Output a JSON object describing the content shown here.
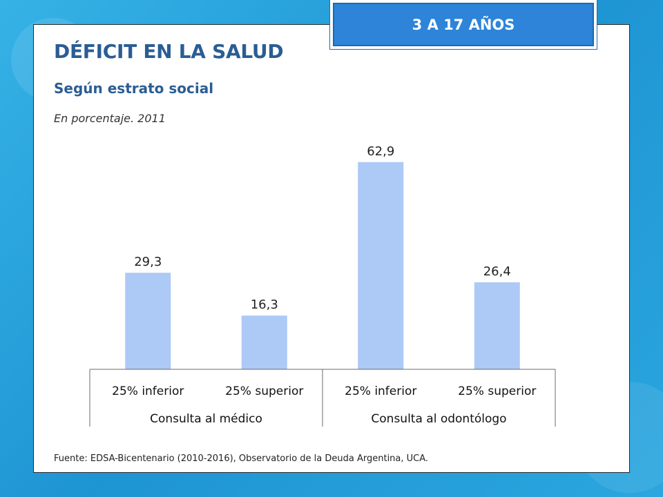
{
  "badge": {
    "label": "3 A 17 AÑOS"
  },
  "header": {
    "title": "DÉFICIT EN LA SALUD",
    "subtitle": "Según estrato social",
    "note": "En porcentaje. 2011"
  },
  "footer": {
    "source": "Fuente: EDSA-Bicentenario (2010-2016), Observatorio de la Deuda Argentina, UCA."
  },
  "colors": {
    "bar": "#adc9f5",
    "title": "#2a5d94",
    "badge": "#2d84d8",
    "background": "#2aa3dc"
  },
  "chart_data": {
    "type": "bar",
    "categories": [
      "25% inferior",
      "25% superior",
      "25% inferior",
      "25% superior"
    ],
    "groups": [
      {
        "label": "Consulta al médico",
        "categories": [
          "25% inferior",
          "25% superior"
        ]
      },
      {
        "label": "Consulta al odontólogo",
        "categories": [
          "25% inferior",
          "25% superior"
        ]
      }
    ],
    "values": [
      29.3,
      16.3,
      62.9,
      26.4
    ],
    "data_labels": [
      "29,3",
      "16,3",
      "62,9",
      "26,4"
    ],
    "ylim": [
      0,
      66
    ],
    "grid": false,
    "legend": "none"
  }
}
